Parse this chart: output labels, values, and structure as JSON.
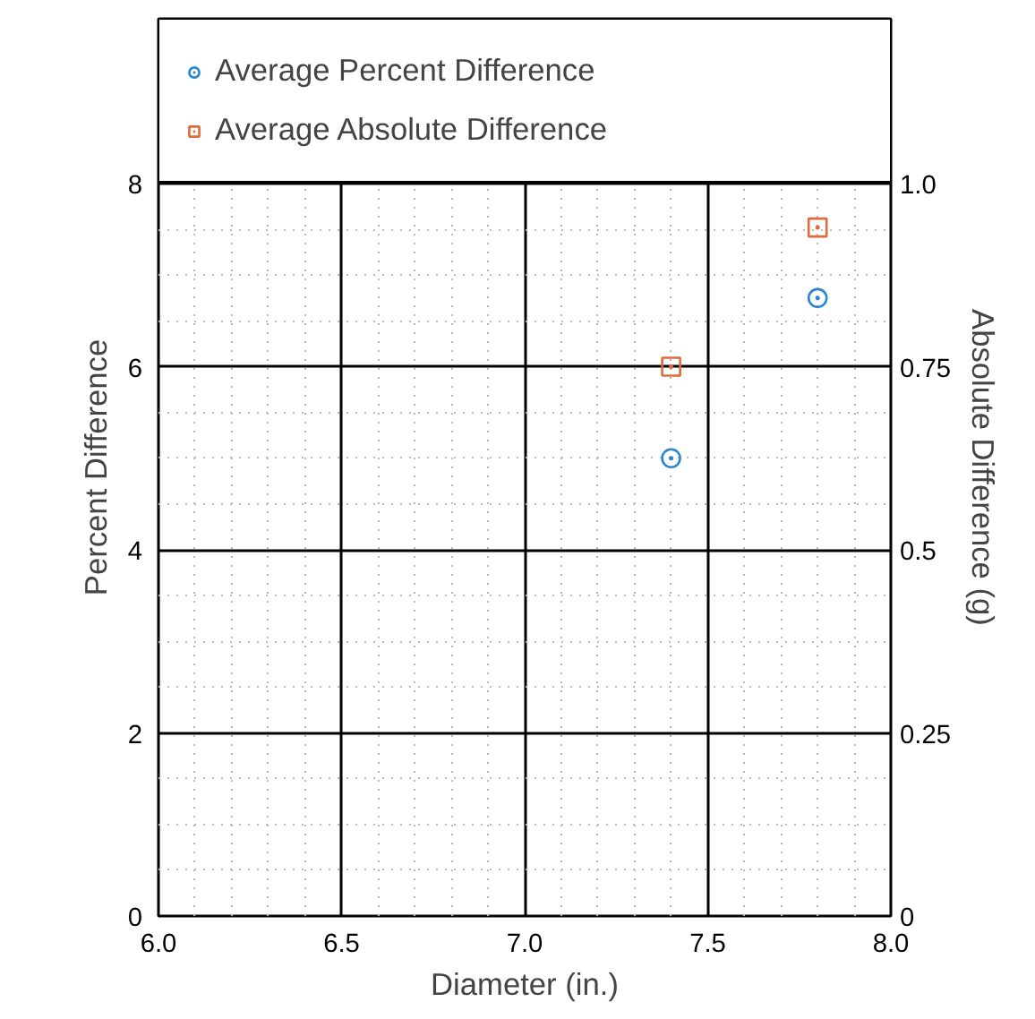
{
  "chart_data": {
    "type": "scatter",
    "xlabel": "Diameter (in.)",
    "ylabel": "Percent Difference",
    "y2label": "Absolute Difference (g)",
    "x": [
      7.4,
      7.8
    ],
    "series": [
      {
        "name": "Average Percent Difference",
        "color": "#2a86d1",
        "values": [
          5.0,
          6.75
        ],
        "marker": "circle"
      },
      {
        "name": "Average Absolute Difference",
        "color": "#e06a3c",
        "values": [
          0.75,
          0.94
        ],
        "marker": "square",
        "axis": "y2"
      }
    ],
    "xlim": [
      6.0,
      8.0
    ],
    "xticks": [
      {
        "value": 6.0,
        "label": "6.0"
      },
      {
        "value": 6.5,
        "label": "6.5"
      },
      {
        "value": 7.0,
        "label": "7.0"
      },
      {
        "value": 7.5,
        "label": "7.5"
      },
      {
        "value": 8.0,
        "label": "8.0"
      }
    ],
    "ylim": [
      0,
      9.8
    ],
    "yticks": [
      0,
      2,
      4,
      6,
      8
    ],
    "y2lim": [
      0,
      1.225
    ],
    "y2ticks": [
      0,
      0.25,
      0.5,
      0.75,
      {
        "value": 1,
        "label": "1.0"
      }
    ],
    "grid": true,
    "legend": "top"
  }
}
